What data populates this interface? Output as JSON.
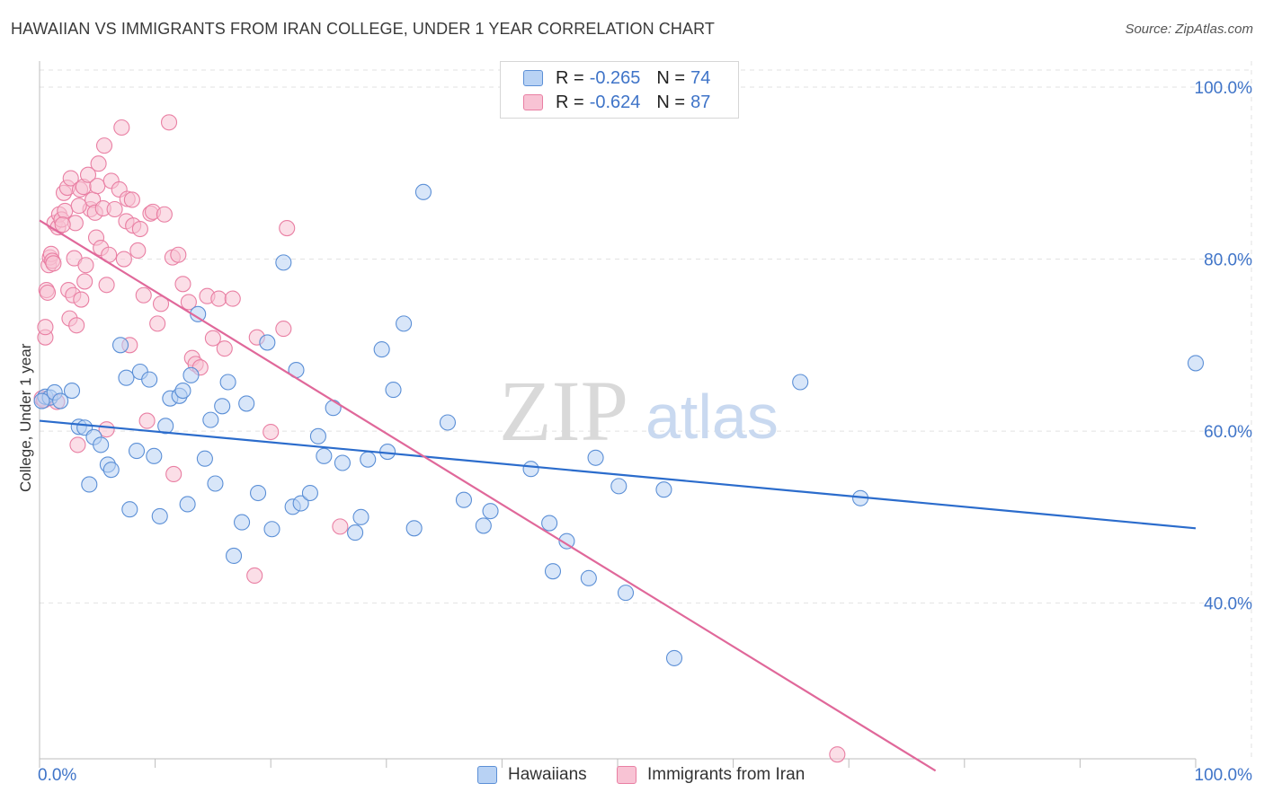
{
  "title": "HAWAIIAN VS IMMIGRANTS FROM IRAN COLLEGE, UNDER 1 YEAR CORRELATION CHART",
  "source": "Source: ZipAtlas.com",
  "watermark": {
    "zip": "ZIP",
    "atlas": "atlas"
  },
  "legend": {
    "rows": [
      {
        "r_label": "R =",
        "r_value": "-0.265",
        "n_label": "N =",
        "n_value": "74"
      },
      {
        "r_label": "R =",
        "r_value": "-0.624",
        "n_label": "N =",
        "n_value": "87"
      }
    ]
  },
  "colors": {
    "blue_fill": "#b8d2f4",
    "blue_stroke": "#5b8fd6",
    "blue_line": "#2b6ccc",
    "pink_fill": "#f8c3d4",
    "pink_stroke": "#e97fa3",
    "pink_line": "#e0689a",
    "accent_text": "#3f74c8",
    "grid": "#e2e2e2"
  },
  "chart_data": {
    "type": "scatter",
    "title": "HAWAIIAN VS IMMIGRANTS FROM IRAN COLLEGE, UNDER 1 YEAR CORRELATION CHART",
    "xlabel": "",
    "ylabel": "College, Under 1 year",
    "xlim": [
      0,
      100
    ],
    "ylim": [
      20,
      102
    ],
    "x_ticks": [
      "0.0%",
      "100.0%"
    ],
    "y_ticks": [
      {
        "value": 100,
        "label": "100.0%"
      },
      {
        "value": 80,
        "label": "80.0%"
      },
      {
        "value": 60,
        "label": "60.0%"
      },
      {
        "value": 40,
        "label": "40.0%"
      }
    ],
    "grid": true,
    "legend_position": "bottom-center",
    "series": [
      {
        "name": "Hawaiians",
        "r": -0.265,
        "n": 74,
        "trend": {
          "x": [
            0,
            100
          ],
          "y": [
            61.2,
            48.7
          ]
        },
        "points": [
          [
            0.5,
            64
          ],
          [
            0.9,
            63.9
          ],
          [
            1.3,
            64.5
          ],
          [
            1.8,
            63.5
          ],
          [
            2.8,
            64.7
          ],
          [
            3.4,
            60.5
          ],
          [
            3.9,
            60.4
          ],
          [
            4.3,
            53.8
          ],
          [
            4.7,
            59.3
          ],
          [
            5.3,
            58.4
          ],
          [
            5.9,
            56.1
          ],
          [
            6.2,
            55.5
          ],
          [
            7.0,
            70.0
          ],
          [
            7.5,
            66.2
          ],
          [
            7.8,
            50.9
          ],
          [
            8.4,
            57.7
          ],
          [
            8.7,
            66.9
          ],
          [
            9.5,
            66.0
          ],
          [
            9.9,
            57.1
          ],
          [
            10.4,
            50.1
          ],
          [
            10.9,
            60.6
          ],
          [
            11.3,
            63.8
          ],
          [
            12.1,
            64.1
          ],
          [
            12.4,
            64.7
          ],
          [
            12.8,
            51.5
          ],
          [
            13.1,
            66.5
          ],
          [
            13.7,
            73.6
          ],
          [
            14.3,
            56.8
          ],
          [
            14.8,
            61.3
          ],
          [
            15.2,
            53.9
          ],
          [
            15.8,
            62.9
          ],
          [
            16.3,
            65.7
          ],
          [
            16.8,
            45.5
          ],
          [
            17.5,
            49.4
          ],
          [
            17.9,
            63.2
          ],
          [
            18.9,
            52.8
          ],
          [
            19.7,
            70.3
          ],
          [
            20.1,
            48.6
          ],
          [
            21.1,
            79.6
          ],
          [
            21.9,
            51.2
          ],
          [
            22.2,
            67.1
          ],
          [
            22.6,
            51.6
          ],
          [
            23.4,
            52.8
          ],
          [
            24.1,
            59.4
          ],
          [
            24.6,
            57.1
          ],
          [
            25.4,
            62.7
          ],
          [
            26.2,
            56.3
          ],
          [
            27.3,
            48.2
          ],
          [
            27.8,
            50.0
          ],
          [
            28.4,
            56.7
          ],
          [
            29.6,
            69.5
          ],
          [
            30.1,
            57.6
          ],
          [
            30.6,
            64.8
          ],
          [
            31.5,
            72.5
          ],
          [
            32.4,
            48.7
          ],
          [
            33.2,
            87.8
          ],
          [
            35.3,
            61.0
          ],
          [
            36.7,
            52.0
          ],
          [
            38.4,
            49.0
          ],
          [
            39.0,
            50.7
          ],
          [
            42.5,
            55.6
          ],
          [
            44.1,
            49.3
          ],
          [
            44.4,
            43.7
          ],
          [
            45.6,
            47.2
          ],
          [
            47.5,
            42.9
          ],
          [
            48.1,
            56.9
          ],
          [
            50.1,
            53.6
          ],
          [
            50.7,
            41.2
          ],
          [
            54.0,
            53.2
          ],
          [
            54.9,
            33.6
          ],
          [
            65.8,
            65.7
          ],
          [
            71.0,
            52.2
          ],
          [
            100.0,
            67.9
          ],
          [
            0.2,
            63.5
          ]
        ]
      },
      {
        "name": "Immigrants from Iran",
        "r": -0.624,
        "n": 87,
        "trend": {
          "x": [
            0,
            77.5
          ],
          "y": [
            84.5,
            20.5
          ]
        },
        "points": [
          [
            0.2,
            63.8
          ],
          [
            0.5,
            70.9
          ],
          [
            0.5,
            72.1
          ],
          [
            0.6,
            76.4
          ],
          [
            0.7,
            76.1
          ],
          [
            0.8,
            79.3
          ],
          [
            0.9,
            80.2
          ],
          [
            1.0,
            80.6
          ],
          [
            1.1,
            79.8
          ],
          [
            1.3,
            84.2
          ],
          [
            1.5,
            63.4
          ],
          [
            1.6,
            83.7
          ],
          [
            1.7,
            85.2
          ],
          [
            1.9,
            84.6
          ],
          [
            2.1,
            87.7
          ],
          [
            2.2,
            85.6
          ],
          [
            2.4,
            88.3
          ],
          [
            2.5,
            76.4
          ],
          [
            2.6,
            73.1
          ],
          [
            2.7,
            89.4
          ],
          [
            2.9,
            75.8
          ],
          [
            3.0,
            80.1
          ],
          [
            3.1,
            84.2
          ],
          [
            3.2,
            72.3
          ],
          [
            3.3,
            58.4
          ],
          [
            3.5,
            88.1
          ],
          [
            3.6,
            75.3
          ],
          [
            3.8,
            88.4
          ],
          [
            3.9,
            77.4
          ],
          [
            4.0,
            79.3
          ],
          [
            4.2,
            89.8
          ],
          [
            4.4,
            85.8
          ],
          [
            4.6,
            86.9
          ],
          [
            4.8,
            85.4
          ],
          [
            4.9,
            82.5
          ],
          [
            5.0,
            88.5
          ],
          [
            5.1,
            91.1
          ],
          [
            5.3,
            81.3
          ],
          [
            5.5,
            85.9
          ],
          [
            5.6,
            93.2
          ],
          [
            5.8,
            77.0
          ],
          [
            5.8,
            60.2
          ],
          [
            6.0,
            80.5
          ],
          [
            6.2,
            89.1
          ],
          [
            6.5,
            85.8
          ],
          [
            6.9,
            88.1
          ],
          [
            7.1,
            95.3
          ],
          [
            7.3,
            80.0
          ],
          [
            7.5,
            84.4
          ],
          [
            7.6,
            87.0
          ],
          [
            7.8,
            70.0
          ],
          [
            8.0,
            86.9
          ],
          [
            8.1,
            83.9
          ],
          [
            8.5,
            81.0
          ],
          [
            8.7,
            83.5
          ],
          [
            9.0,
            75.8
          ],
          [
            9.3,
            61.2
          ],
          [
            9.6,
            85.3
          ],
          [
            9.8,
            85.5
          ],
          [
            10.2,
            72.5
          ],
          [
            10.5,
            74.8
          ],
          [
            10.8,
            85.2
          ],
          [
            11.2,
            95.9
          ],
          [
            11.5,
            80.2
          ],
          [
            11.6,
            55.0
          ],
          [
            12.0,
            80.5
          ],
          [
            12.4,
            77.1
          ],
          [
            12.9,
            75.0
          ],
          [
            13.2,
            68.5
          ],
          [
            13.5,
            67.8
          ],
          [
            13.9,
            67.4
          ],
          [
            14.5,
            75.7
          ],
          [
            15.0,
            70.8
          ],
          [
            15.5,
            75.4
          ],
          [
            16.0,
            69.6
          ],
          [
            16.7,
            75.4
          ],
          [
            18.6,
            43.2
          ],
          [
            18.8,
            70.9
          ],
          [
            20.0,
            59.9
          ],
          [
            21.1,
            71.9
          ],
          [
            21.4,
            83.6
          ],
          [
            26.0,
            48.9
          ],
          [
            69.0,
            22.4
          ],
          [
            0.4,
            63.6
          ],
          [
            1.2,
            79.5
          ],
          [
            2.0,
            84.0
          ],
          [
            3.4,
            86.2
          ]
        ]
      }
    ]
  },
  "bottom_legend": {
    "items": [
      "Hawaiians",
      "Immigrants from Iran"
    ]
  }
}
